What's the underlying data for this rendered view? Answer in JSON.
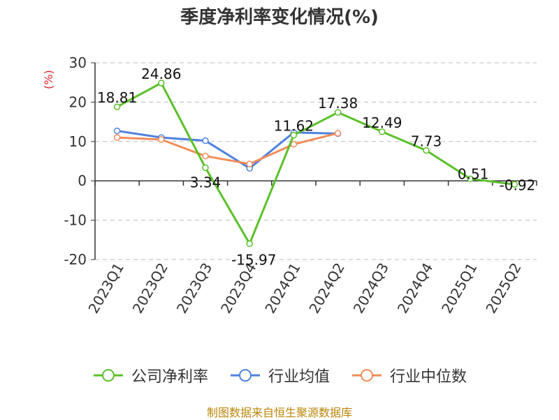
{
  "chart_data": {
    "type": "line",
    "title": "季度净利率变化情况(%)",
    "ylabel": "(%)",
    "ylim": [
      -20,
      30
    ],
    "yticks": [
      -20,
      -10,
      0,
      10,
      20,
      30
    ],
    "grid": true,
    "legend_position": "bottom",
    "categories": [
      "2023Q1",
      "2023Q2",
      "2023Q3",
      "2023Q4",
      "2024Q1",
      "2024Q2",
      "2024Q3",
      "2024Q4",
      "2025Q1",
      "2025Q2"
    ],
    "series": [
      {
        "name": "公司净利率",
        "color": "#5bc02a",
        "values": [
          18.81,
          24.86,
          3.34,
          -15.97,
          11.62,
          17.38,
          12.49,
          7.73,
          0.51,
          -0.92
        ],
        "labels": [
          "18.81",
          "24.86",
          "3.34",
          "-15.97",
          "11.62",
          "17.38",
          "12.49",
          "7.73",
          "0.51",
          "-0.92"
        ]
      },
      {
        "name": "行业均值",
        "color": "#4f81e0",
        "values": [
          12.7,
          11.0,
          10.2,
          3.2,
          12.3,
          12.0,
          null,
          null,
          null,
          null
        ]
      },
      {
        "name": "行业中位数",
        "color": "#f28d5a",
        "values": [
          11.0,
          10.5,
          6.3,
          4.3,
          9.3,
          12.1,
          null,
          null,
          null,
          null
        ]
      }
    ]
  },
  "source": "制图数据来自恒生聚源数据库"
}
